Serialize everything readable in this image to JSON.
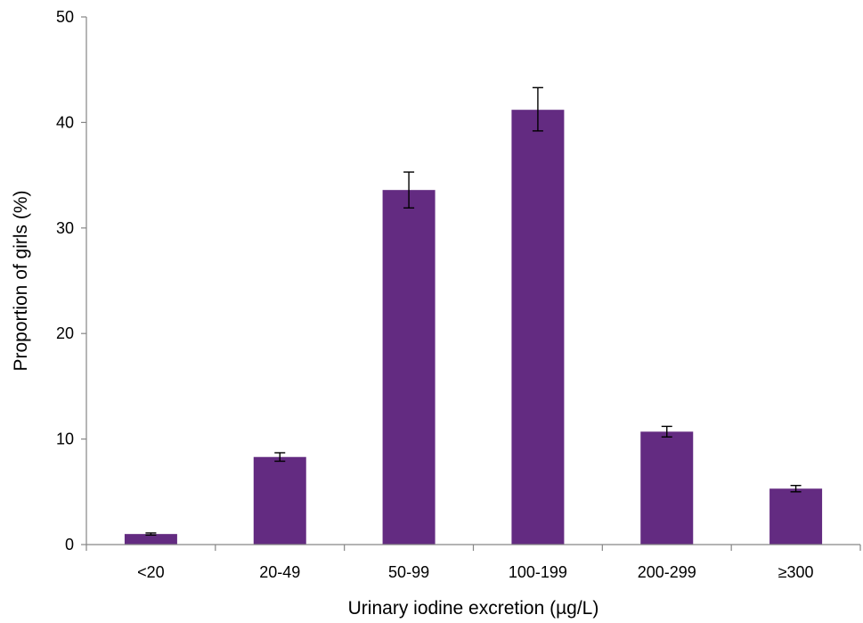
{
  "chart_data": {
    "type": "bar",
    "categories": [
      "<20",
      "20-49",
      "50-99",
      "100-199",
      "200-299",
      "≥300"
    ],
    "values": [
      1.0,
      8.3,
      33.6,
      41.2,
      10.7,
      5.3
    ],
    "error_low": [
      0.9,
      7.9,
      31.9,
      39.2,
      10.2,
      5.0
    ],
    "error_high": [
      1.1,
      8.7,
      35.3,
      43.3,
      11.2,
      5.6
    ],
    "title": "",
    "xlabel": "Urinary iodine excretion (µg/L)",
    "ylabel": "Proportion of girls (%)",
    "ylim": [
      0,
      50
    ],
    "yticks": [
      "0",
      "10",
      "20",
      "30",
      "40",
      "50"
    ],
    "bar_color": "#632b81",
    "grid": false,
    "legend": "none"
  }
}
